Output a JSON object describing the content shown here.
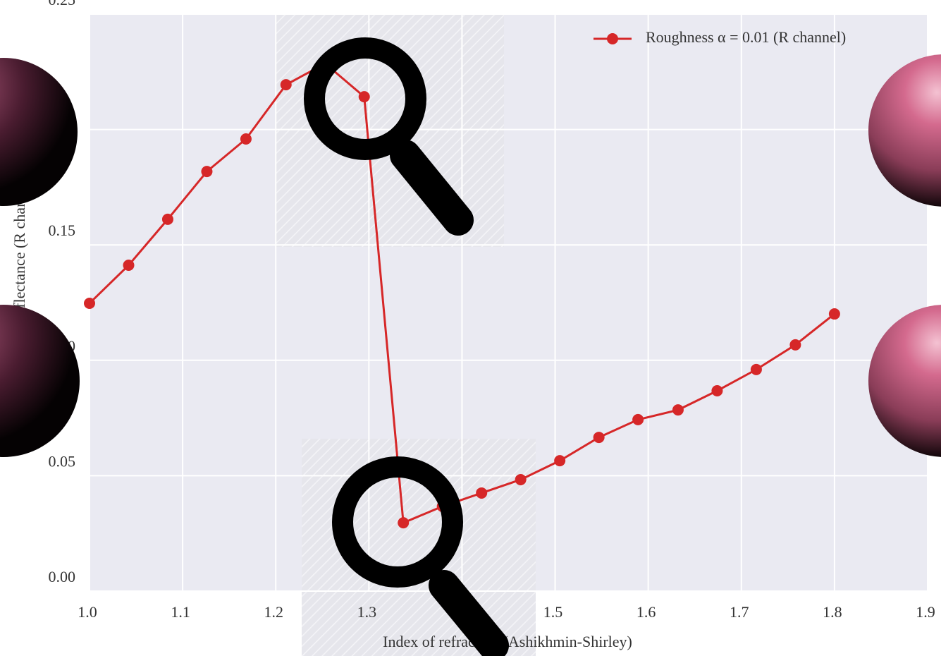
{
  "chart_data": {
    "type": "line",
    "xlabel": "Index of refraction (Ashikhmin-Shirley)",
    "ylabel": "Reflectance (R channel)",
    "x": [
      1.0,
      1.042,
      1.084,
      1.126,
      1.168,
      1.211,
      1.253,
      1.295,
      1.337,
      1.379,
      1.421,
      1.463,
      1.505,
      1.547,
      1.589,
      1.632,
      1.674,
      1.716,
      1.758,
      1.8
    ],
    "series": [
      {
        "name": "Roughness α = 0.01 (R channel)",
        "color": "#d62728",
        "values": [
          0.1247,
          0.1412,
          0.1611,
          0.1818,
          0.1959,
          0.2194,
          0.2286,
          0.2142,
          0.0296,
          0.0367,
          0.0425,
          0.0483,
          0.0565,
          0.0666,
          0.0743,
          0.0785,
          0.0868,
          0.096,
          0.1067,
          0.1201
        ]
      }
    ],
    "xlim": [
      1.0,
      1.9
    ],
    "xticks": [
      {
        "value": 1.0,
        "label": "1.0"
      },
      1.1,
      1.2,
      1.3,
      1.4,
      1.5,
      1.6,
      1.7,
      1.8,
      1.9
    ],
    "ylim": [
      0,
      0.25
    ],
    "yticks": [
      {
        "value": 0,
        "label": "0.00"
      },
      0.05,
      {
        "value": 0.1,
        "label": "0.10"
      },
      0.15,
      {
        "value": 0.2,
        "label": "0.20"
      },
      0.25
    ],
    "grid": true,
    "legend": "upper right"
  }
}
